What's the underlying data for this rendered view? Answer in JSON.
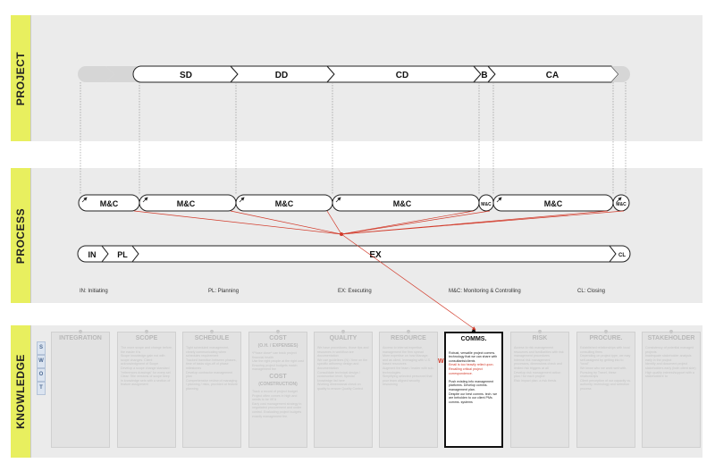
{
  "bands": {
    "project": "PROJECT",
    "process": "PROCESS",
    "knowledge": "KNOWLEDGE"
  },
  "project_phases": [
    "SD",
    "DD",
    "CD",
    "B",
    "CA"
  ],
  "mc_loops": {
    "labels": [
      "M&C",
      "M&C",
      "M&C",
      "M&C",
      "M&C",
      "M&C",
      "M&C"
    ]
  },
  "process_phases": [
    "IN",
    "PL",
    "EX",
    "CL"
  ],
  "legend": {
    "initiating": "IN: Initiating",
    "planning": "PL: Planning",
    "executing": "EX: Executing",
    "monitoring": "M&C: Monitoring & Controlling",
    "closing": "CL: Closing"
  },
  "swot": [
    "S",
    "W",
    "O",
    "T"
  ],
  "knowledge_areas": [
    {
      "title": "INTEGRATION",
      "body": ""
    },
    {
      "title": "SCOPE",
      "body": "The more scope and change before, the easier it is\nScope knowledge gain not with scope changes. Client acknowledgment of Scope\nDevelop a scope change standard \"references drawings\" for every set\nClean Title versions of scope keep in knowledge sets with a section of feature assignment"
    },
    {
      "title": "SCHEDULE",
      "body": "Tight scheduled management, clearly communicating when schedules requirement\nTracked transition between phases, time of tasks sign-off of phase milestones\nDevelop contractor management plan\nComprehensive review of managing / planning / risks, provided at feature planning"
    },
    {
      "title": "COST",
      "subtitle": "(O.H. / EXPENSES)",
      "title2": "COST",
      "subtitle2": "(CONSTRUCTION)",
      "body": "*Phase close* can track project financial health\nUse the right people at the right cost\nEnsuring project budgets match management fee",
      "body2": "Track a record of project budget\nProject often comes in high and needs to be VE'd\nEarly cost management strategy in negotiated procurement and under control. Evaluating project budgets exactly management fee."
    },
    {
      "title": "QUALITY",
      "body": "We have procedures; those tips and resources in workflow are documentation\nWe use guidelines (N) / time on the specific adhoresy design and documentation\nConsolidate technical design / construction level, Special knowledge list here\nWorking dimensional check on quality to ensure Quality Control"
    },
    {
      "title": "RESOURCE",
      "body": "Access to internal expertise, management the firm spread\nMore expertise on how Manage; and as client, leveraging with U.S. based resources\nAugment the team / leader with sub-technologies\nSimplifying selected personnel that your team aligned security resourcing"
    },
    {
      "title": "COMMS.",
      "body": "Robust, versatile project comms. technology that we can share with consultants/clients",
      "hl": "Email is too heavily relied upon. Recalling critical project correspondence.",
      "body2": "Push existing info management platforms. Develop comms. management plan.\nDespite our best comms. tech. we are beholden to our client PMs comms. systems"
    },
    {
      "title": "RISK",
      "body": "Access to risk management resources and familiarities with risk management procedures\nInternal risk management processes, dimensions check and limited risk triggers at all\nDevelop risk management action plan / for each project\nRisk impact plan: a risk thesis"
    },
    {
      "title": "PROCURE.",
      "body": "Established relationships with local consulting firms\nDepending on project type, we may self-assigned by getting into to “local”\nWe know who we work well with. Pursuing by Travel, these relationships\nClient perception of our capacity vs. authority, technology and selection process"
    },
    {
      "title": "STAKEHOLDER",
      "body": "Consistency of potential managed projects\nInadequate stakeholder analysis early in the project\nIdentify and document project stakeholders early (both client side)\nHigh quality interest/support with a stakeholders' to"
    }
  ]
}
